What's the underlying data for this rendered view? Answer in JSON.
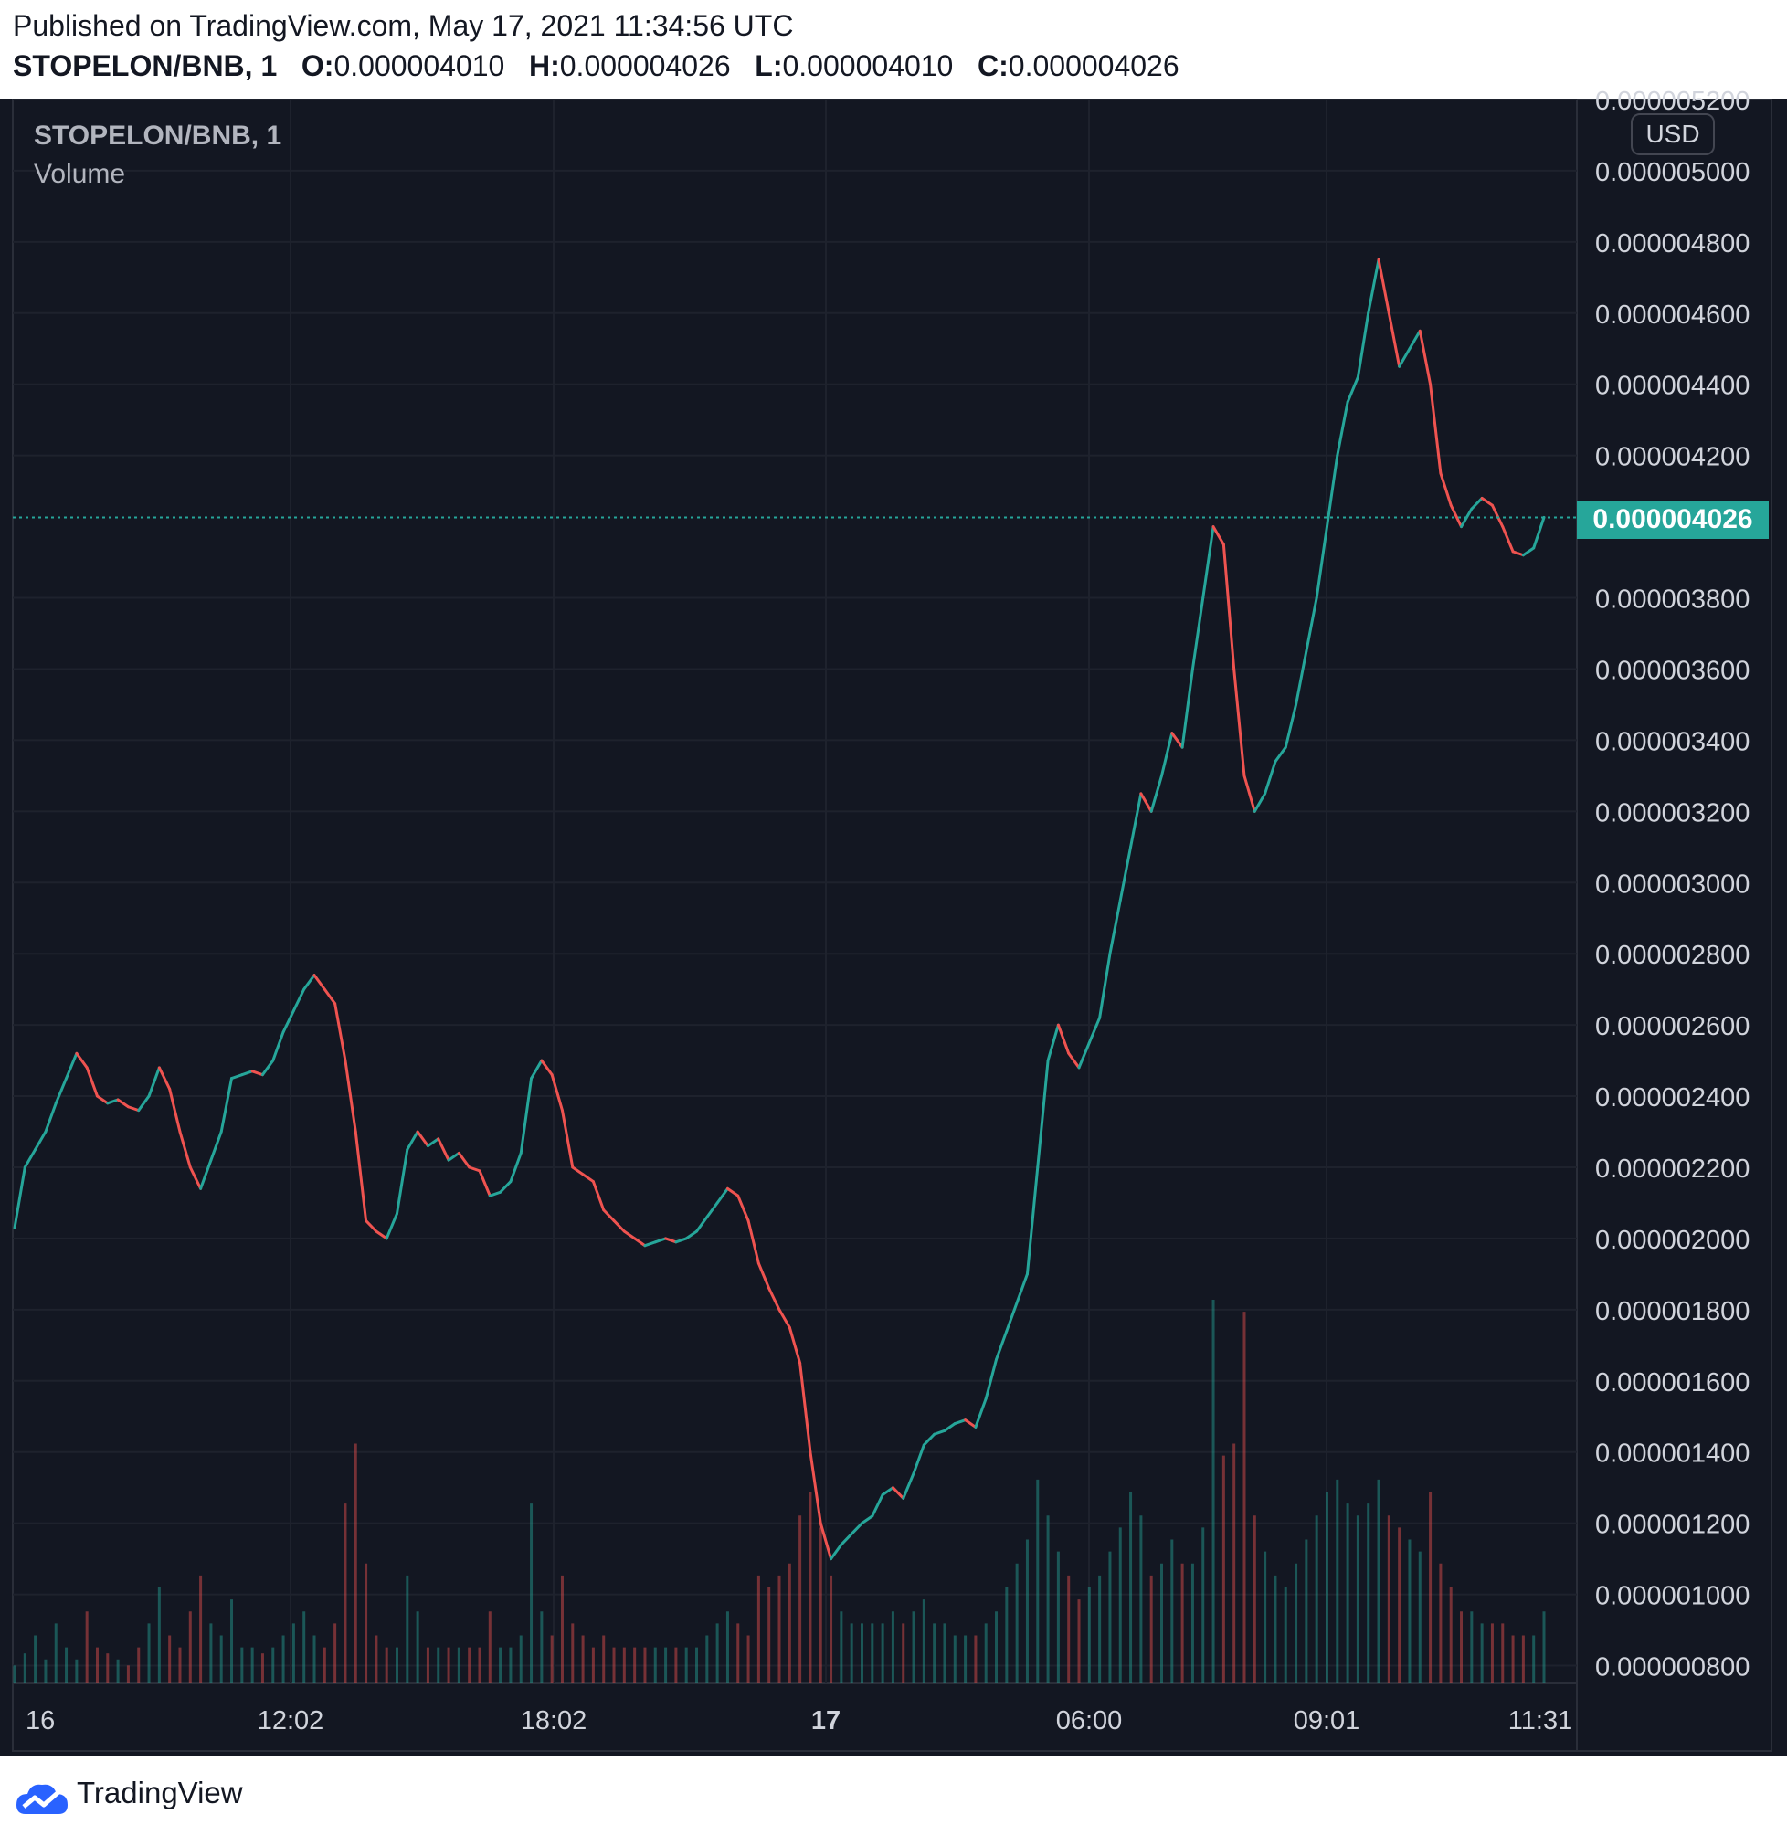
{
  "header": {
    "published": "Published on TradingView.com, May 17, 2021 11:34:56 UTC",
    "symbol": "STOPELON/BNB, 1",
    "o_label": "O:",
    "o_value": "0.000004010",
    "h_label": "H:",
    "h_value": "0.000004026",
    "l_label": "L:",
    "l_value": "0.000004010",
    "c_label": "C:",
    "c_value": "0.000004026"
  },
  "legend": {
    "title": "STOPELON/BNB, 1",
    "volume": "Volume"
  },
  "currency_badge": "USD",
  "last_price_label": "0.000004026",
  "footer": {
    "brand": "TradingView"
  },
  "colors": {
    "background": "#131722",
    "up": "#26a69a",
    "down": "#ef5350",
    "grid": "#1e222d",
    "text": "#d1d4dc"
  },
  "chart_data": {
    "type": "line",
    "ylim": [
      7.5e-07,
      5.2e-06
    ],
    "y_ticks": [
      "0.000005200",
      "0.000005000",
      "0.000004800",
      "0.000004600",
      "0.000004400",
      "0.000004200",
      "0.000003800",
      "0.000003600",
      "0.000003400",
      "0.000003200",
      "0.000003000",
      "0.000002800",
      "0.000002600",
      "0.000002400",
      "0.000002200",
      "0.000002000",
      "0.000001800",
      "0.000001600",
      "0.000001400",
      "0.000001200",
      "0.000001000",
      "0.000000800"
    ],
    "x_ticks": [
      {
        "label": "16",
        "bold": false
      },
      {
        "label": "12:02",
        "bold": false
      },
      {
        "label": "18:02",
        "bold": false
      },
      {
        "label": "17",
        "bold": true
      },
      {
        "label": "06:00",
        "bold": false
      },
      {
        "label": "09:01",
        "bold": false
      },
      {
        "label": "11:31",
        "bold": false
      }
    ],
    "last_price": 4.026e-06,
    "series": [
      {
        "values": [
          2.03,
          2.2,
          2.25,
          2.3,
          2.38,
          2.45,
          2.52,
          2.48,
          2.4,
          2.38,
          2.39,
          2.37,
          2.36,
          2.4,
          2.48,
          2.42,
          2.3,
          2.2,
          2.14,
          2.22,
          2.3,
          2.45,
          2.46,
          2.47,
          2.46,
          2.5,
          2.58,
          2.64,
          2.7,
          2.74,
          2.7,
          2.66,
          2.5,
          2.3,
          2.05,
          2.02,
          2.0,
          2.07,
          2.25,
          2.3,
          2.26,
          2.28,
          2.22,
          2.24,
          2.2,
          2.19,
          2.12,
          2.13,
          2.16,
          2.24,
          2.45,
          2.5,
          2.46,
          2.36,
          2.2,
          2.18,
          2.16,
          2.08,
          2.05,
          2.02,
          2.0,
          1.98,
          1.99,
          2.0,
          1.99,
          2.0,
          2.02,
          2.06,
          2.1,
          2.14,
          2.12,
          2.05,
          1.93,
          1.86,
          1.8,
          1.75,
          1.65,
          1.4,
          1.2,
          1.1,
          1.14,
          1.17,
          1.2,
          1.22,
          1.28,
          1.3,
          1.27,
          1.34,
          1.42,
          1.45,
          1.46,
          1.48,
          1.49,
          1.47,
          1.55,
          1.66,
          1.74,
          1.82,
          1.9,
          2.2,
          2.5,
          2.6,
          2.52,
          2.48,
          2.55,
          2.62,
          2.8,
          2.95,
          3.1,
          3.25,
          3.2,
          3.3,
          3.42,
          3.38,
          3.6,
          3.8,
          4.0,
          3.95,
          3.6,
          3.3,
          3.2,
          3.25,
          3.34,
          3.38,
          3.5,
          3.65,
          3.8,
          4.0,
          4.2,
          4.35,
          4.42,
          4.6,
          4.75,
          4.6,
          4.45,
          4.5,
          4.55,
          4.4,
          4.15,
          4.06,
          4.0,
          4.05,
          4.08,
          4.06,
          4.0,
          3.93,
          3.92,
          3.94,
          4.026
        ]
      }
    ],
    "volume": {
      "values": [
        0.15,
        0.25,
        0.4,
        0.2,
        0.5,
        0.3,
        0.2,
        0.6,
        0.3,
        0.25,
        0.2,
        0.15,
        0.3,
        0.5,
        0.8,
        0.4,
        0.3,
        0.6,
        0.9,
        0.5,
        0.4,
        0.7,
        0.3,
        0.3,
        0.25,
        0.3,
        0.4,
        0.5,
        0.6,
        0.4,
        0.3,
        0.5,
        1.5,
        2.0,
        1.0,
        0.4,
        0.3,
        0.3,
        0.9,
        0.6,
        0.3,
        0.3,
        0.3,
        0.3,
        0.3,
        0.3,
        0.6,
        0.3,
        0.3,
        0.4,
        1.5,
        0.6,
        0.4,
        0.9,
        0.5,
        0.4,
        0.3,
        0.4,
        0.3,
        0.3,
        0.3,
        0.3,
        0.3,
        0.3,
        0.3,
        0.3,
        0.3,
        0.4,
        0.5,
        0.6,
        0.5,
        0.4,
        0.9,
        0.8,
        0.9,
        1.0,
        1.4,
        1.6,
        1.3,
        0.9,
        0.6,
        0.5,
        0.5,
        0.5,
        0.5,
        0.6,
        0.5,
        0.6,
        0.7,
        0.5,
        0.5,
        0.4,
        0.4,
        0.4,
        0.5,
        0.6,
        0.8,
        1.0,
        1.2,
        1.7,
        1.4,
        1.1,
        0.9,
        0.7,
        0.8,
        0.9,
        1.1,
        1.3,
        1.6,
        1.4,
        0.9,
        1.0,
        1.2,
        1.0,
        1.0,
        1.3,
        3.2,
        1.9,
        2.0,
        3.1,
        1.4,
        1.1,
        0.9,
        0.8,
        1.0,
        1.2,
        1.4,
        1.6,
        1.7,
        1.5,
        1.4,
        1.5,
        1.7,
        1.4,
        1.3,
        1.2,
        1.1,
        1.6,
        1.0,
        0.8,
        0.6,
        0.6,
        0.5,
        0.5,
        0.5,
        0.4,
        0.4,
        0.4,
        0.6
      ],
      "max": 3.2
    }
  }
}
